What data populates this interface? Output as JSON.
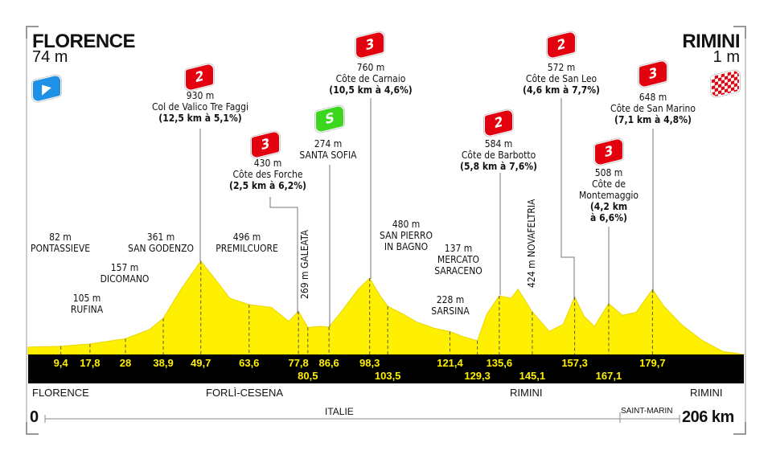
{
  "start": {
    "city": "FLORENCE",
    "altitude": "74 m",
    "icon": "start-flag-icon"
  },
  "finish": {
    "city": "RIMINI",
    "altitude": "1 m",
    "icon": "finish-checkered-flag-icon"
  },
  "colors": {
    "profile": "#ffef00",
    "band": "#000000",
    "category_flag": "#e3000f",
    "sprint_flag": "#3cd61e",
    "start_flag": "#1e90e6"
  },
  "climbs": [
    {
      "cat": "2",
      "alt": "930 m",
      "name": "Col de Valico Tre Faggi",
      "detail": "(12,5 km à 5,1%)"
    },
    {
      "cat": "3",
      "alt": "430 m",
      "name": "Côte des Forche",
      "detail": "(2,5 km à 6,2%)"
    },
    {
      "cat": "S",
      "alt": "274 m",
      "name": "SANTA SOFIA"
    },
    {
      "cat": "3",
      "alt": "760 m",
      "name": "Côte de Carnaio",
      "detail": "(10,5 km à 4,6%)"
    },
    {
      "cat": "2",
      "alt": "584 m",
      "name": "Côte de Barbotto",
      "detail": "(5,8 km à 7,6%)"
    },
    {
      "cat": "2",
      "alt": "572 m",
      "name": "Côte de San Leo",
      "detail": "(4,6 km à 7,7%)"
    },
    {
      "cat": "3",
      "alt": "648 m",
      "name": "Côte de San Marino",
      "detail": "(7,1 km à 4,8%)"
    },
    {
      "cat": "3",
      "alt": "508 m",
      "name": "Côte de",
      "name2": "Montemaggio",
      "detail": "(4,2 km",
      "detail2": "à 6,6%)"
    }
  ],
  "places": [
    {
      "alt": "82 m",
      "name": "PONTASSIEVE"
    },
    {
      "alt": "105 m",
      "name": "RUFINA"
    },
    {
      "alt": "157 m",
      "name": "DICOMANO"
    },
    {
      "alt": "361 m",
      "name": "SAN GODENZO"
    },
    {
      "alt": "496 m",
      "name": "PREMILCUORE"
    },
    {
      "alt": "480 m",
      "name": "SAN PIERRO",
      "name2": "IN BAGNO"
    },
    {
      "alt": "137 m",
      "name": "MERCATO",
      "name2": "SARACENO"
    },
    {
      "alt": "228 m",
      "name": "SARSINA"
    },
    {
      "text": "269 m GALEATA"
    },
    {
      "text": "424 m NOVAFELTRIA"
    }
  ],
  "km_marks": [
    "9,4",
    "17,8",
    "28",
    "38,9",
    "49,7",
    "63,6",
    "77,8",
    "80,5",
    "86,6",
    "98,3",
    "103,5",
    "121,4",
    "129,3",
    "135,6",
    "145,1",
    "157,3",
    "167,1",
    "179,7"
  ],
  "regions": [
    "FLORENCE",
    "FORLÌ-CESENA",
    "RIMINI",
    "RIMINI"
  ],
  "countries": [
    "ITALIE",
    "SAINT-MARIN"
  ],
  "distance": {
    "start": "0",
    "end": "206 km"
  },
  "chart_data": {
    "type": "area",
    "xlabel": "",
    "ylabel": "",
    "xlim": [
      0,
      206
    ],
    "points": [
      [
        0,
        74
      ],
      [
        5,
        78
      ],
      [
        9.4,
        82
      ],
      [
        17.8,
        105
      ],
      [
        28,
        157
      ],
      [
        35,
        250
      ],
      [
        38.9,
        361
      ],
      [
        44,
        650
      ],
      [
        49.7,
        930
      ],
      [
        55,
        700
      ],
      [
        58,
        560
      ],
      [
        63.6,
        496
      ],
      [
        70,
        470
      ],
      [
        75,
        330
      ],
      [
        77.8,
        430
      ],
      [
        80.5,
        269
      ],
      [
        84,
        280
      ],
      [
        86.6,
        274
      ],
      [
        90,
        420
      ],
      [
        95,
        650
      ],
      [
        98.3,
        760
      ],
      [
        101,
        600
      ],
      [
        103.5,
        480
      ],
      [
        108,
        400
      ],
      [
        112,
        320
      ],
      [
        117,
        260
      ],
      [
        121.4,
        228
      ],
      [
        125,
        180
      ],
      [
        129.3,
        137
      ],
      [
        132,
        400
      ],
      [
        135.6,
        584
      ],
      [
        139,
        560
      ],
      [
        141,
        650
      ],
      [
        145.1,
        424
      ],
      [
        150,
        230
      ],
      [
        154,
        300
      ],
      [
        157.3,
        572
      ],
      [
        160,
        380
      ],
      [
        163,
        280
      ],
      [
        167.1,
        508
      ],
      [
        171,
        390
      ],
      [
        175,
        420
      ],
      [
        179.7,
        648
      ],
      [
        183,
        480
      ],
      [
        188,
        300
      ],
      [
        194,
        140
      ],
      [
        200,
        30
      ],
      [
        206,
        1
      ]
    ]
  }
}
